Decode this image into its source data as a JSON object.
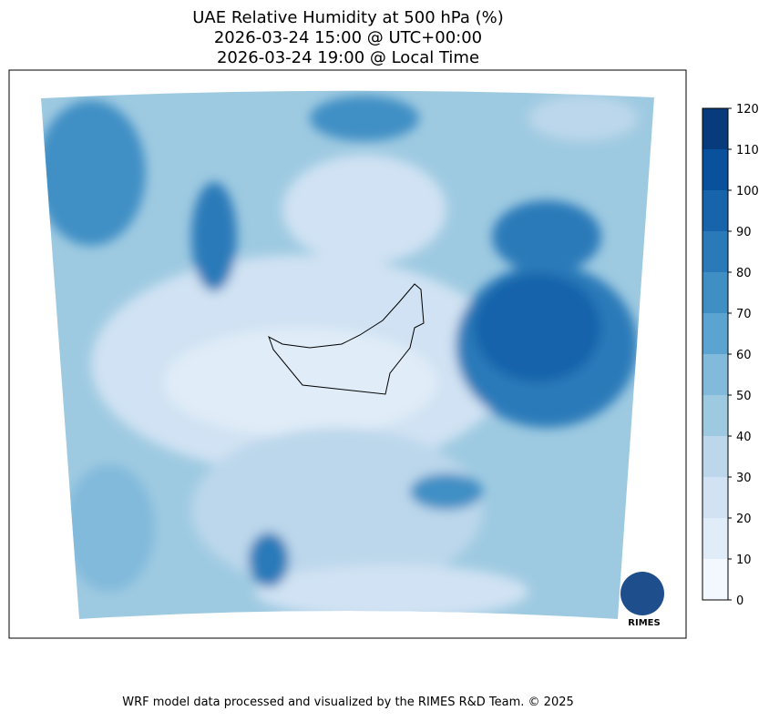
{
  "chart_data": {
    "type": "contour",
    "title": "UAE Relative Humidity at 500 hPa (%)",
    "subtitle_utc": "2026-03-24 15:00 @ UTC+00:00",
    "subtitle_local": "2026-03-24 19:00 @ Local Time",
    "colorbar_lim": [
      0,
      120
    ],
    "colorbar_ticks": [
      0,
      10,
      20,
      30,
      40,
      50,
      60,
      70,
      80,
      90,
      100,
      110,
      120
    ],
    "colors": [
      "#f2f8fd",
      "#e0ecf8",
      "#d0e2f3",
      "#bcd7eb",
      "#9ecae1",
      "#82badb",
      "#5ba3d0",
      "#3f8fc5",
      "#2a7ab9",
      "#1764ab",
      "#09519c",
      "#083b7c"
    ],
    "logo_text": "RIMES",
    "footer": "WRF model data processed and visualized by the RIMES R&D Team. © 2025"
  }
}
